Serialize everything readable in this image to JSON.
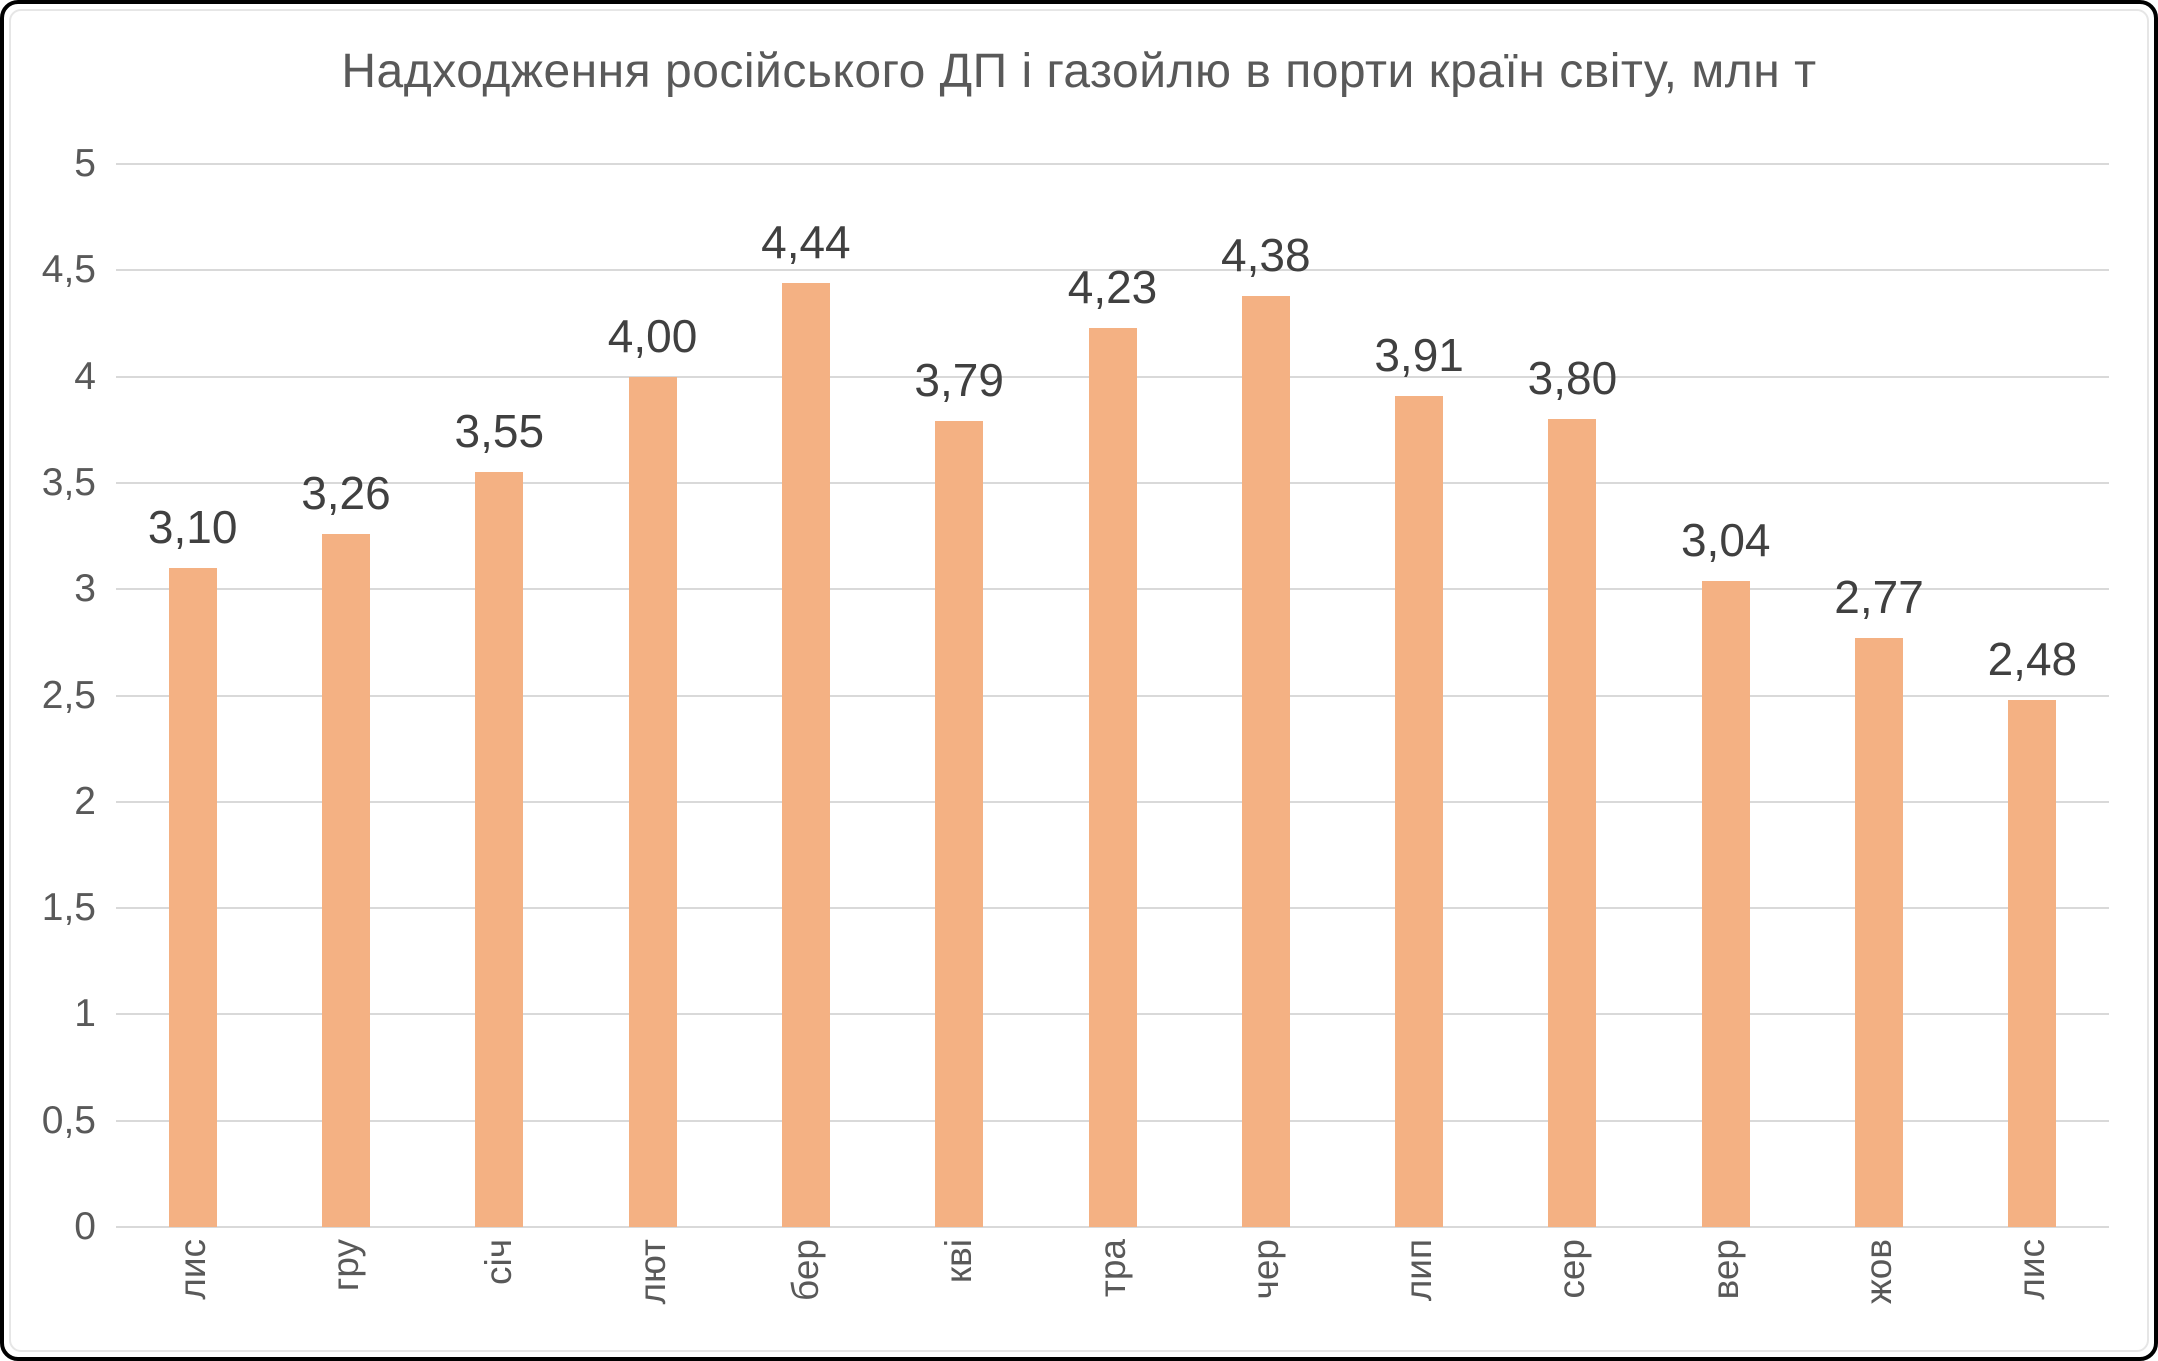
{
  "chart_data": {
    "type": "bar",
    "title": "Надходження російського ДП і газойлю в порти країн світу, млн т",
    "categories": [
      "лис",
      "гру",
      "січ",
      "лют",
      "бер",
      "кві",
      "тра",
      "чер",
      "лип",
      "сер",
      "вер",
      "жов",
      "лис"
    ],
    "values": [
      3.1,
      3.26,
      3.55,
      4.0,
      4.44,
      3.79,
      4.23,
      4.38,
      3.91,
      3.8,
      3.04,
      2.77,
      2.48
    ],
    "value_labels": [
      "3,10",
      "3,26",
      "3,55",
      "4,00",
      "4,44",
      "3,79",
      "4,23",
      "4,38",
      "3,91",
      "3,80",
      "3,04",
      "2,77",
      "2,48"
    ],
    "xlabel": "",
    "ylabel": "",
    "ylim": [
      0,
      5
    ],
    "y_tick_step": 0.5,
    "y_tick_labels": [
      "0",
      "0,5",
      "1",
      "1,5",
      "2",
      "2,5",
      "3",
      "3,5",
      "4",
      "4,5",
      "5"
    ],
    "grid": true,
    "legend_position": "none",
    "colors": {
      "bar": "#f4b183",
      "title_text": "#595959",
      "axis_text": "#595959",
      "data_label_text": "#404040",
      "gridline": "#d9d9d9"
    }
  }
}
